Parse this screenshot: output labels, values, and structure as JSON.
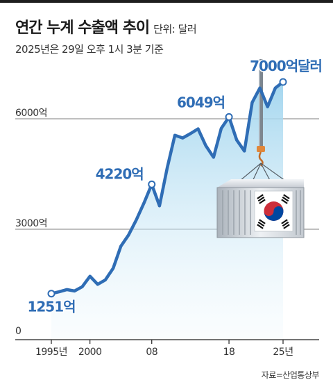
{
  "header": {
    "title": "연간 누계 수출액 추이",
    "unit": "단위: 달러",
    "subtitle": "2025년은 29일 오후 1시 3분 기준"
  },
  "source": "자료=산업통상부",
  "colors": {
    "line": "#2f6db5",
    "fill_top": "#9fd4ee",
    "grid": "#555555",
    "axis": "#333333",
    "text": "#1a1a1a"
  },
  "chart_data": {
    "type": "line",
    "x_tick_labels": [
      "1995년",
      "2000",
      "08",
      "18",
      "25년"
    ],
    "y_tick_labels": [
      "0",
      "3000억",
      "6000억"
    ],
    "ylim": [
      0,
      7500
    ],
    "x": [
      1995,
      1996,
      1997,
      1998,
      1999,
      2000,
      2001,
      2002,
      2003,
      2004,
      2005,
      2006,
      2007,
      2008,
      2009,
      2010,
      2011,
      2012,
      2013,
      2014,
      2015,
      2016,
      2017,
      2018,
      2019,
      2020,
      2021,
      2022,
      2023,
      2024,
      2025
    ],
    "series": [
      {
        "values": [
          1251,
          1300,
          1360,
          1323,
          1437,
          1722,
          1504,
          1625,
          1938,
          2538,
          2844,
          3254,
          3715,
          4220,
          3635,
          4664,
          5552,
          5479,
          5596,
          5727,
          5268,
          4954,
          5737,
          6049,
          5422,
          5125,
          6444,
          6836,
          6326,
          6838,
          7000
        ]
      }
    ],
    "annotations": [
      {
        "year": 1995,
        "value": 1251,
        "label": "1251억"
      },
      {
        "year": 2008,
        "value": 4220,
        "label": "4220억"
      },
      {
        "year": 2018,
        "value": 6049,
        "label": "6049억"
      },
      {
        "year": 2025,
        "value": 7000,
        "label": "7000억달러"
      }
    ],
    "legend": "none",
    "grid": true
  }
}
